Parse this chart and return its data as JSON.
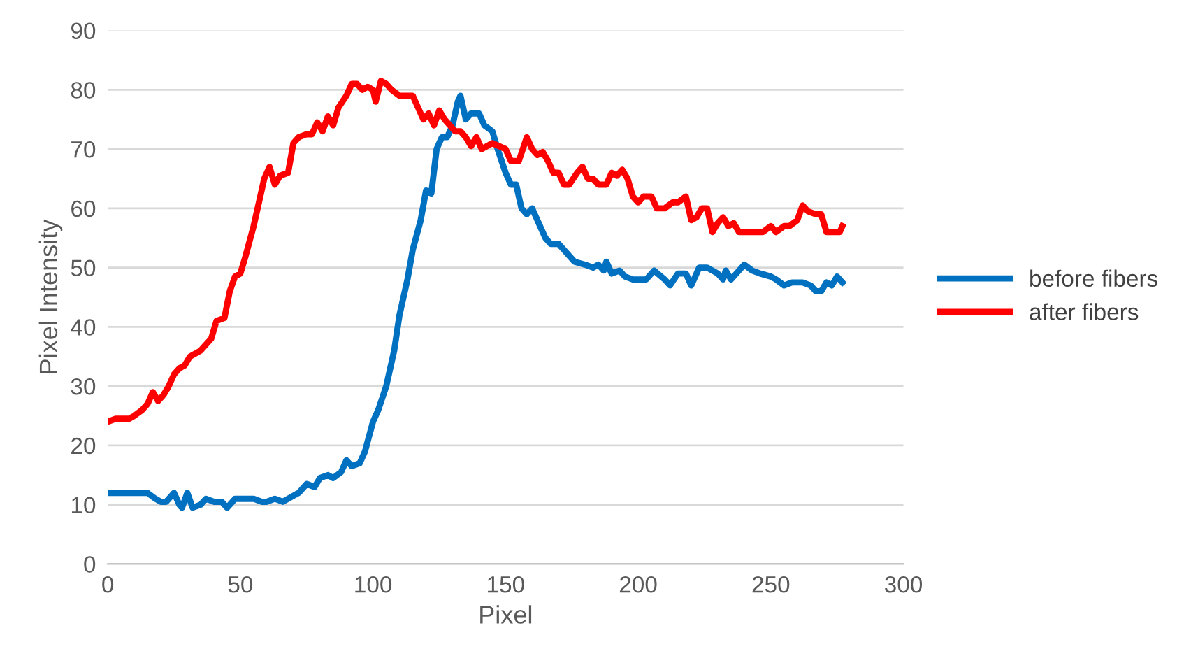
{
  "chart_data": {
    "type": "line",
    "xlabel": "Pixel",
    "ylabel": "Pixel Intensity",
    "xlim": [
      0,
      300
    ],
    "xticks": [
      0,
      50,
      100,
      150,
      200,
      250,
      300
    ],
    "ylim": [
      0,
      90
    ],
    "yticks": [
      0,
      10,
      20,
      30,
      40,
      50,
      60,
      70,
      80,
      90
    ],
    "grid": "y",
    "legend": "right",
    "marker": "none",
    "line_style": "solid",
    "series": [
      {
        "name": "before fibers",
        "color": "#0070c0",
        "x": [
          0,
          5,
          10,
          15,
          18,
          20,
          22,
          25,
          27,
          28,
          30,
          32,
          35,
          37,
          40,
          43,
          45,
          48,
          55,
          58,
          60,
          63,
          66,
          70,
          72,
          75,
          78,
          80,
          83,
          85,
          88,
          90,
          92,
          95,
          97,
          100,
          102,
          105,
          108,
          110,
          113,
          115,
          118,
          120,
          122,
          124,
          126,
          128,
          130,
          132,
          133,
          135,
          137,
          140,
          142,
          145,
          147,
          150,
          152,
          154,
          156,
          158,
          160,
          163,
          165,
          167,
          170,
          173,
          176,
          180,
          183,
          185,
          187,
          188,
          190,
          193,
          195,
          198,
          200,
          203,
          206,
          210,
          212,
          215,
          218,
          220,
          223,
          226,
          230,
          232,
          233,
          235,
          237,
          240,
          243,
          246,
          250,
          252,
          255,
          258,
          262,
          265,
          267,
          269,
          271,
          273,
          275,
          277
        ],
        "values": [
          12,
          12,
          12,
          12,
          11,
          10.5,
          10.5,
          12,
          10,
          9.5,
          12,
          9.5,
          10,
          11,
          10.5,
          10.5,
          9.5,
          11,
          11,
          10.5,
          10.5,
          11,
          10.5,
          11.5,
          12,
          13.5,
          13,
          14.5,
          15,
          14.5,
          15.5,
          17.5,
          16.5,
          17,
          19,
          24,
          26,
          30,
          36,
          42,
          48,
          53,
          58,
          63,
          62.5,
          70,
          72,
          72,
          74,
          78,
          79,
          75,
          76,
          76,
          74,
          73,
          70,
          66,
          64,
          64,
          60,
          59,
          60,
          57,
          55,
          54,
          54,
          52.5,
          51,
          50.5,
          50,
          50.5,
          49.5,
          51,
          49,
          49.5,
          48.5,
          48,
          48,
          48,
          49.5,
          48,
          47,
          49,
          49,
          47,
          50,
          50,
          49,
          48,
          49.5,
          48,
          49,
          50.5,
          49.5,
          49,
          48.5,
          48,
          47,
          47.5,
          47.5,
          47,
          46,
          46,
          47.5,
          47,
          48.5,
          47.5
        ]
      },
      {
        "name": "after fibers",
        "color": "#ff0000",
        "x": [
          0,
          3,
          8,
          10,
          13,
          15,
          17,
          19,
          21,
          23,
          25,
          27,
          29,
          31,
          33,
          35,
          37,
          39,
          41,
          44,
          46,
          48,
          50,
          52,
          55,
          57,
          59,
          61,
          63,
          65,
          68,
          70,
          72,
          75,
          77,
          79,
          81,
          83,
          85,
          87,
          90,
          92,
          94,
          96,
          98,
          100,
          101,
          103,
          105,
          107,
          110,
          115,
          117,
          119,
          121,
          123,
          125,
          127,
          129,
          131,
          133,
          135,
          137,
          139,
          141,
          143,
          145,
          150,
          152,
          155,
          158,
          160,
          162,
          164,
          166,
          168,
          170,
          172,
          174,
          177,
          179,
          181,
          183,
          185,
          188,
          190,
          192,
          194,
          196,
          198,
          200,
          202,
          205,
          207,
          210,
          213,
          215,
          218,
          220,
          222,
          224,
          226,
          228,
          230,
          232,
          234,
          236,
          238,
          245,
          247,
          250,
          252,
          255,
          257,
          260,
          262,
          264,
          267,
          269,
          271,
          273,
          276,
          277
        ],
        "values": [
          24,
          24.5,
          24.5,
          25,
          26,
          27,
          29,
          27.5,
          28.5,
          30,
          32,
          33,
          33.5,
          35,
          35.5,
          36,
          37,
          38,
          41,
          41.5,
          46,
          48.5,
          49,
          52,
          57,
          61,
          65,
          67,
          64,
          65.5,
          66,
          71,
          72,
          72.5,
          72.5,
          74.5,
          73,
          75.5,
          74,
          77,
          79,
          81,
          81,
          80,
          80.5,
          80,
          78,
          81.5,
          81,
          80,
          79,
          79,
          77,
          75,
          76,
          74,
          76.5,
          75,
          74,
          73,
          73,
          72,
          70.5,
          72,
          70,
          70.5,
          71,
          70,
          68,
          68,
          72,
          70,
          69,
          69.5,
          68,
          66,
          66,
          64,
          64,
          66,
          67,
          65,
          65,
          64,
          64,
          66,
          65.5,
          66.5,
          65,
          62,
          61,
          62,
          62,
          60,
          60,
          61,
          61,
          62,
          58,
          58.5,
          60,
          60,
          56,
          57.5,
          58.5,
          57,
          57.5,
          56,
          56,
          56,
          57,
          56,
          57,
          57,
          58,
          60.5,
          59.5,
          59,
          59,
          56,
          56,
          56,
          57
        ]
      }
    ]
  }
}
